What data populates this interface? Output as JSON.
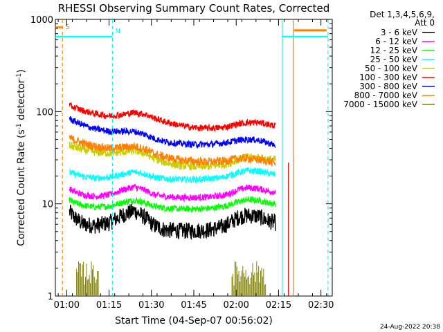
{
  "chart_data": {
    "type": "line",
    "title": "RHESSI Observing Summary Count Rates, Corrected",
    "xlabel": "Start Time (04-Sep-07 00:56:02)",
    "ylabel_main": "Corrected Count Rate (s",
    "ylabel_sup1": "-1",
    "ylabel_mid": " detector",
    "ylabel_sup2": "-1",
    "ylabel_end": ")",
    "yscale": "log",
    "ylim": [
      1,
      1000
    ],
    "xlim": [
      "00:56",
      "02:34"
    ],
    "x_ticks": [
      {
        "t": 60,
        "label": "01:00"
      },
      {
        "t": 75,
        "label": "01:15"
      },
      {
        "t": 90,
        "label": "01:30"
      },
      {
        "t": 105,
        "label": "01:45"
      },
      {
        "t": 120,
        "label": "02:00"
      },
      {
        "t": 135,
        "label": "02:15"
      },
      {
        "t": 150,
        "label": "02:30"
      }
    ],
    "y_ticks": [
      {
        "v": 1,
        "label": "1"
      },
      {
        "v": 10,
        "label": "10"
      },
      {
        "v": 100,
        "label": "100"
      },
      {
        "v": 1000,
        "label": "1000"
      }
    ],
    "legend_header": [
      "Det 1,3,4,5,6,9,",
      "Att 0"
    ],
    "legend_placement": "right",
    "series": [
      {
        "name": "3 - 6 keV",
        "color": "#000000",
        "points": [
          [
            61,
            8.2
          ],
          [
            63,
            7
          ],
          [
            66,
            6
          ],
          [
            70,
            5.8
          ],
          [
            75,
            6.2
          ],
          [
            80,
            7.6
          ],
          [
            84,
            8.4
          ],
          [
            88,
            7
          ],
          [
            91,
            5.8
          ],
          [
            95,
            5.2
          ],
          [
            100,
            5.1
          ],
          [
            105,
            5.1
          ],
          [
            110,
            5.2
          ],
          [
            115,
            5.6
          ],
          [
            118,
            6.3
          ],
          [
            121,
            7.2
          ],
          [
            124,
            7.5
          ],
          [
            128,
            7.3
          ],
          [
            131,
            6.6
          ],
          [
            134,
            6.2
          ]
        ]
      },
      {
        "name": "6 - 12 keV",
        "color": "#ff00ff",
        "points": [
          [
            61,
            14.5
          ],
          [
            63,
            13.4
          ],
          [
            66,
            12.5
          ],
          [
            70,
            12
          ],
          [
            75,
            12.5
          ],
          [
            80,
            14.2
          ],
          [
            84,
            15.3
          ],
          [
            88,
            14
          ],
          [
            91,
            12.5
          ],
          [
            95,
            12
          ],
          [
            100,
            11.7
          ],
          [
            105,
            11.7
          ],
          [
            110,
            11.8
          ],
          [
            115,
            12.3
          ],
          [
            118,
            13
          ],
          [
            121,
            14.3
          ],
          [
            124,
            15
          ],
          [
            128,
            14.6
          ],
          [
            131,
            13.8
          ],
          [
            134,
            13.4
          ]
        ]
      },
      {
        "name": "12 - 25 keV",
        "color": "#00ff00",
        "points": [
          [
            61,
            11
          ],
          [
            63,
            10.2
          ],
          [
            66,
            9.6
          ],
          [
            70,
            9.2
          ],
          [
            75,
            9.4
          ],
          [
            80,
            10.4
          ],
          [
            84,
            11
          ],
          [
            88,
            10.2
          ],
          [
            91,
            9.4
          ],
          [
            95,
            9
          ],
          [
            100,
            8.8
          ],
          [
            105,
            8.8
          ],
          [
            110,
            8.9
          ],
          [
            115,
            9.3
          ],
          [
            118,
            9.8
          ],
          [
            121,
            10.6
          ],
          [
            124,
            11.1
          ],
          [
            128,
            10.9
          ],
          [
            131,
            10.3
          ],
          [
            134,
            10
          ]
        ]
      },
      {
        "name": "25 - 50 keV",
        "color": "#00ffff",
        "points": [
          [
            61,
            22
          ],
          [
            63,
            21
          ],
          [
            66,
            19.8
          ],
          [
            70,
            19
          ],
          [
            75,
            19.3
          ],
          [
            80,
            21
          ],
          [
            84,
            22.2
          ],
          [
            88,
            21
          ],
          [
            91,
            19.4
          ],
          [
            95,
            18.7
          ],
          [
            100,
            18.4
          ],
          [
            105,
            18.4
          ],
          [
            110,
            18.6
          ],
          [
            115,
            19.3
          ],
          [
            118,
            20.5
          ],
          [
            121,
            22
          ],
          [
            124,
            23
          ],
          [
            128,
            22.6
          ],
          [
            131,
            21.5
          ],
          [
            134,
            20.8
          ]
        ]
      },
      {
        "name": "50 - 100 keV",
        "color": "#cccc00",
        "points": [
          [
            61,
            43
          ],
          [
            63,
            41
          ],
          [
            66,
            38.5
          ],
          [
            70,
            36.5
          ],
          [
            75,
            35.5
          ],
          [
            80,
            36.5
          ],
          [
            84,
            38
          ],
          [
            88,
            35
          ],
          [
            91,
            31
          ],
          [
            95,
            28
          ],
          [
            100,
            26
          ],
          [
            105,
            25.5
          ],
          [
            110,
            25.5
          ],
          [
            115,
            26.5
          ],
          [
            118,
            28
          ],
          [
            121,
            30.5
          ],
          [
            124,
            32
          ],
          [
            128,
            31.5
          ],
          [
            131,
            30.5
          ],
          [
            134,
            30
          ]
        ]
      },
      {
        "name": "100 - 300 keV",
        "color": "#ff0000",
        "points": [
          [
            61,
            116
          ],
          [
            63,
            110
          ],
          [
            66,
            102
          ],
          [
            70,
            95
          ],
          [
            75,
            90
          ],
          [
            80,
            93
          ],
          [
            84,
            98
          ],
          [
            88,
            93
          ],
          [
            91,
            85
          ],
          [
            95,
            77
          ],
          [
            100,
            71
          ],
          [
            105,
            67
          ],
          [
            110,
            66
          ],
          [
            115,
            67
          ],
          [
            118,
            70
          ],
          [
            121,
            74
          ],
          [
            124,
            76
          ],
          [
            128,
            76
          ],
          [
            131,
            73
          ],
          [
            134,
            70
          ]
        ]
      },
      {
        "name": "300 - 800 keV",
        "color": "#0000ff",
        "points": [
          [
            61,
            84
          ],
          [
            63,
            78
          ],
          [
            66,
            71
          ],
          [
            70,
            65
          ],
          [
            75,
            61
          ],
          [
            80,
            61
          ],
          [
            84,
            61
          ],
          [
            88,
            56
          ],
          [
            91,
            51
          ],
          [
            95,
            47
          ],
          [
            100,
            45
          ],
          [
            105,
            44
          ],
          [
            110,
            44
          ],
          [
            115,
            45.5
          ],
          [
            118,
            47
          ],
          [
            121,
            49
          ],
          [
            124,
            50
          ],
          [
            128,
            49
          ],
          [
            131,
            46
          ],
          [
            134,
            43
          ]
        ]
      },
      {
        "name": "800 - 7000 keV",
        "color": "#ff8000",
        "points": [
          [
            61,
            52
          ],
          [
            63,
            49
          ],
          [
            66,
            45
          ],
          [
            70,
            42
          ],
          [
            75,
            40
          ],
          [
            80,
            41
          ],
          [
            84,
            42
          ],
          [
            88,
            39
          ],
          [
            91,
            35
          ],
          [
            95,
            32
          ],
          [
            100,
            30
          ],
          [
            105,
            29
          ],
          [
            110,
            28.5
          ],
          [
            115,
            29
          ],
          [
            118,
            30
          ],
          [
            121,
            31
          ],
          [
            124,
            31
          ],
          [
            128,
            30
          ],
          [
            131,
            29
          ],
          [
            134,
            27.5
          ]
        ]
      },
      {
        "name": "7000 - 15000 keV",
        "color": "#808000",
        "points": []
      }
    ],
    "annotations": [
      {
        "label": "S",
        "t": 58.5,
        "color": "#ff8000"
      },
      {
        "label": "N",
        "t": 76.2,
        "color": "#00ffff"
      }
    ],
    "footer_date": "24-Aug-2022 20:38"
  }
}
